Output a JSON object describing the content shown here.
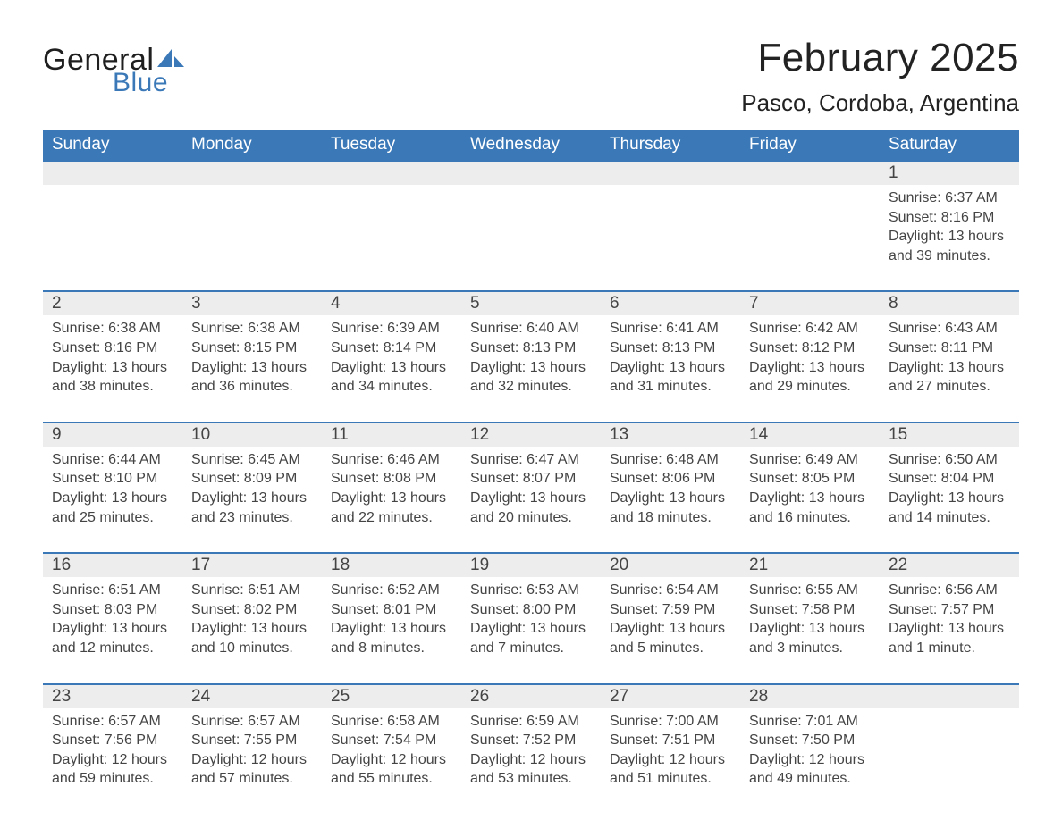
{
  "logo": {
    "text_general": "General",
    "text_blue": "Blue",
    "sail_color": "#3a78b8"
  },
  "title": "February 2025",
  "location": "Pasco, Cordoba, Argentina",
  "colors": {
    "header_blue": "#3a78b8",
    "daynum_gray": "#ededed",
    "divider_blue": "#3a78b8",
    "text": "#333333",
    "background": "#ffffff"
  },
  "weekdays": [
    "Sunday",
    "Monday",
    "Tuesday",
    "Wednesday",
    "Thursday",
    "Friday",
    "Saturday"
  ],
  "weeks": [
    [
      {
        "day": "",
        "sunrise": "",
        "sunset": "",
        "daylight": ""
      },
      {
        "day": "",
        "sunrise": "",
        "sunset": "",
        "daylight": ""
      },
      {
        "day": "",
        "sunrise": "",
        "sunset": "",
        "daylight": ""
      },
      {
        "day": "",
        "sunrise": "",
        "sunset": "",
        "daylight": ""
      },
      {
        "day": "",
        "sunrise": "",
        "sunset": "",
        "daylight": ""
      },
      {
        "day": "",
        "sunrise": "",
        "sunset": "",
        "daylight": ""
      },
      {
        "day": "1",
        "sunrise": "Sunrise: 6:37 AM",
        "sunset": "Sunset: 8:16 PM",
        "daylight": "Daylight: 13 hours and 39 minutes."
      }
    ],
    [
      {
        "day": "2",
        "sunrise": "Sunrise: 6:38 AM",
        "sunset": "Sunset: 8:16 PM",
        "daylight": "Daylight: 13 hours and 38 minutes."
      },
      {
        "day": "3",
        "sunrise": "Sunrise: 6:38 AM",
        "sunset": "Sunset: 8:15 PM",
        "daylight": "Daylight: 13 hours and 36 minutes."
      },
      {
        "day": "4",
        "sunrise": "Sunrise: 6:39 AM",
        "sunset": "Sunset: 8:14 PM",
        "daylight": "Daylight: 13 hours and 34 minutes."
      },
      {
        "day": "5",
        "sunrise": "Sunrise: 6:40 AM",
        "sunset": "Sunset: 8:13 PM",
        "daylight": "Daylight: 13 hours and 32 minutes."
      },
      {
        "day": "6",
        "sunrise": "Sunrise: 6:41 AM",
        "sunset": "Sunset: 8:13 PM",
        "daylight": "Daylight: 13 hours and 31 minutes."
      },
      {
        "day": "7",
        "sunrise": "Sunrise: 6:42 AM",
        "sunset": "Sunset: 8:12 PM",
        "daylight": "Daylight: 13 hours and 29 minutes."
      },
      {
        "day": "8",
        "sunrise": "Sunrise: 6:43 AM",
        "sunset": "Sunset: 8:11 PM",
        "daylight": "Daylight: 13 hours and 27 minutes."
      }
    ],
    [
      {
        "day": "9",
        "sunrise": "Sunrise: 6:44 AM",
        "sunset": "Sunset: 8:10 PM",
        "daylight": "Daylight: 13 hours and 25 minutes."
      },
      {
        "day": "10",
        "sunrise": "Sunrise: 6:45 AM",
        "sunset": "Sunset: 8:09 PM",
        "daylight": "Daylight: 13 hours and 23 minutes."
      },
      {
        "day": "11",
        "sunrise": "Sunrise: 6:46 AM",
        "sunset": "Sunset: 8:08 PM",
        "daylight": "Daylight: 13 hours and 22 minutes."
      },
      {
        "day": "12",
        "sunrise": "Sunrise: 6:47 AM",
        "sunset": "Sunset: 8:07 PM",
        "daylight": "Daylight: 13 hours and 20 minutes."
      },
      {
        "day": "13",
        "sunrise": "Sunrise: 6:48 AM",
        "sunset": "Sunset: 8:06 PM",
        "daylight": "Daylight: 13 hours and 18 minutes."
      },
      {
        "day": "14",
        "sunrise": "Sunrise: 6:49 AM",
        "sunset": "Sunset: 8:05 PM",
        "daylight": "Daylight: 13 hours and 16 minutes."
      },
      {
        "day": "15",
        "sunrise": "Sunrise: 6:50 AM",
        "sunset": "Sunset: 8:04 PM",
        "daylight": "Daylight: 13 hours and 14 minutes."
      }
    ],
    [
      {
        "day": "16",
        "sunrise": "Sunrise: 6:51 AM",
        "sunset": "Sunset: 8:03 PM",
        "daylight": "Daylight: 13 hours and 12 minutes."
      },
      {
        "day": "17",
        "sunrise": "Sunrise: 6:51 AM",
        "sunset": "Sunset: 8:02 PM",
        "daylight": "Daylight: 13 hours and 10 minutes."
      },
      {
        "day": "18",
        "sunrise": "Sunrise: 6:52 AM",
        "sunset": "Sunset: 8:01 PM",
        "daylight": "Daylight: 13 hours and 8 minutes."
      },
      {
        "day": "19",
        "sunrise": "Sunrise: 6:53 AM",
        "sunset": "Sunset: 8:00 PM",
        "daylight": "Daylight: 13 hours and 7 minutes."
      },
      {
        "day": "20",
        "sunrise": "Sunrise: 6:54 AM",
        "sunset": "Sunset: 7:59 PM",
        "daylight": "Daylight: 13 hours and 5 minutes."
      },
      {
        "day": "21",
        "sunrise": "Sunrise: 6:55 AM",
        "sunset": "Sunset: 7:58 PM",
        "daylight": "Daylight: 13 hours and 3 minutes."
      },
      {
        "day": "22",
        "sunrise": "Sunrise: 6:56 AM",
        "sunset": "Sunset: 7:57 PM",
        "daylight": "Daylight: 13 hours and 1 minute."
      }
    ],
    [
      {
        "day": "23",
        "sunrise": "Sunrise: 6:57 AM",
        "sunset": "Sunset: 7:56 PM",
        "daylight": "Daylight: 12 hours and 59 minutes."
      },
      {
        "day": "24",
        "sunrise": "Sunrise: 6:57 AM",
        "sunset": "Sunset: 7:55 PM",
        "daylight": "Daylight: 12 hours and 57 minutes."
      },
      {
        "day": "25",
        "sunrise": "Sunrise: 6:58 AM",
        "sunset": "Sunset: 7:54 PM",
        "daylight": "Daylight: 12 hours and 55 minutes."
      },
      {
        "day": "26",
        "sunrise": "Sunrise: 6:59 AM",
        "sunset": "Sunset: 7:52 PM",
        "daylight": "Daylight: 12 hours and 53 minutes."
      },
      {
        "day": "27",
        "sunrise": "Sunrise: 7:00 AM",
        "sunset": "Sunset: 7:51 PM",
        "daylight": "Daylight: 12 hours and 51 minutes."
      },
      {
        "day": "28",
        "sunrise": "Sunrise: 7:01 AM",
        "sunset": "Sunset: 7:50 PM",
        "daylight": "Daylight: 12 hours and 49 minutes."
      },
      {
        "day": "",
        "sunrise": "",
        "sunset": "",
        "daylight": ""
      }
    ]
  ]
}
